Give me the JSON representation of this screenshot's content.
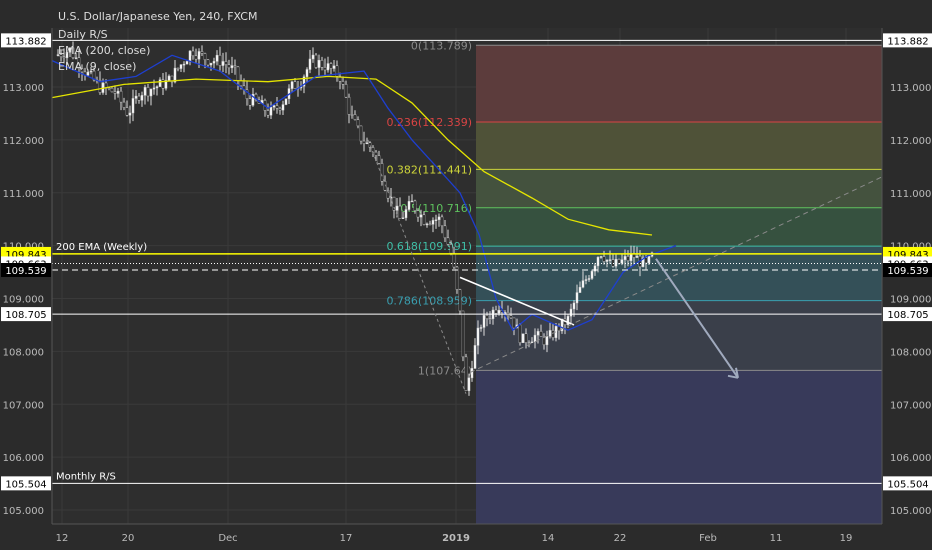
{
  "chart_data": {
    "type": "candlestick",
    "symbol_title": "U.S. Dollar/Japanese Yen, 240, FXCM",
    "indicator_labels": [
      "Daily R/S",
      "EMA (200, close)",
      "EMA (9, close)"
    ],
    "ylim": [
      104.6,
      114.0
    ],
    "y_ticks": [
      105,
      106,
      107,
      108,
      109,
      110,
      111,
      112,
      113
    ],
    "y_tick_labels": [
      "105.000",
      "106.000",
      "107.000",
      "108.000",
      "109.000",
      "110.000",
      "111.000",
      "112.000",
      "113.000"
    ],
    "x_ticks": [
      "12",
      "20",
      "Dec",
      "17",
      "2019",
      "14",
      "22",
      "Feb",
      "11",
      "19"
    ],
    "horizontal_levels": [
      {
        "price": 113.882,
        "label": "113.882",
        "text": "",
        "color": "#ffffff",
        "style": "solid"
      },
      {
        "price": 109.843,
        "label": "109.843",
        "text": "200 EMA (Weekly)",
        "color": "#ffff00",
        "style": "solid"
      },
      {
        "price": 109.663,
        "label": "109.663",
        "text": "",
        "color": "#ffffff",
        "style": "dotted"
      },
      {
        "price": 109.539,
        "label": "109.539",
        "text": "",
        "color": "#ffffff",
        "style": "dashed"
      },
      {
        "price": 108.705,
        "label": "108.705",
        "text": "",
        "color": "#ffffff",
        "style": "solid"
      },
      {
        "price": 105.504,
        "label": "105.504",
        "text": "Monthly R/S",
        "color": "#ffffff",
        "style": "solid"
      }
    ],
    "fibonacci": [
      {
        "ratio": "0",
        "price": 113.789,
        "color": "#8a8a8a"
      },
      {
        "ratio": "0.236",
        "price": 112.339,
        "color": "#d94444"
      },
      {
        "ratio": "0.382",
        "price": 111.441,
        "color": "#cdd43a"
      },
      {
        "ratio": "0.5",
        "price": 110.716,
        "color": "#5ec25e"
      },
      {
        "ratio": "0.618",
        "price": 109.991,
        "color": "#3fbfa7"
      },
      {
        "ratio": "0.786",
        "price": 108.959,
        "color": "#3a9fb0"
      },
      {
        "ratio": "1",
        "price": 107.64,
        "color": "#8a8a8a"
      }
    ],
    "fib_labels": [
      "0(113.789)",
      "0.236(112.339)",
      "0.382(111.441)",
      "0.5(110.716)",
      "0.618(109.991)",
      "0.786(108.959)",
      "1(107.64)"
    ],
    "ema200_approx": [
      [
        0,
        112.8
      ],
      [
        30,
        113.05
      ],
      [
        60,
        113.15
      ],
      [
        90,
        113.1
      ],
      [
        115,
        113.2
      ],
      [
        135,
        113.15
      ],
      [
        150,
        112.7
      ],
      [
        165,
        112.0
      ],
      [
        180,
        111.4
      ],
      [
        200,
        110.9
      ],
      [
        215,
        110.5
      ],
      [
        232,
        110.3
      ],
      [
        250,
        110.2
      ]
    ],
    "ema9_approx": [
      [
        0,
        113.5
      ],
      [
        20,
        113.1
      ],
      [
        35,
        113.2
      ],
      [
        50,
        113.6
      ],
      [
        70,
        113.3
      ],
      [
        90,
        112.6
      ],
      [
        110,
        113.2
      ],
      [
        130,
        113.3
      ],
      [
        140,
        112.6
      ],
      [
        150,
        112.0
      ],
      [
        160,
        111.5
      ],
      [
        170,
        111.0
      ],
      [
        178,
        110.2
      ],
      [
        185,
        109.0
      ],
      [
        192,
        108.4
      ],
      [
        200,
        108.7
      ],
      [
        215,
        108.4
      ],
      [
        225,
        108.6
      ],
      [
        238,
        109.5
      ],
      [
        248,
        109.8
      ],
      [
        260,
        110.0
      ]
    ],
    "accent_colors": {
      "background": "#2b2b2b",
      "up_candle": "#ffffff",
      "down_candle": "#000000",
      "ema200": "#e5e500",
      "ema9": "#1e3fd0"
    }
  }
}
